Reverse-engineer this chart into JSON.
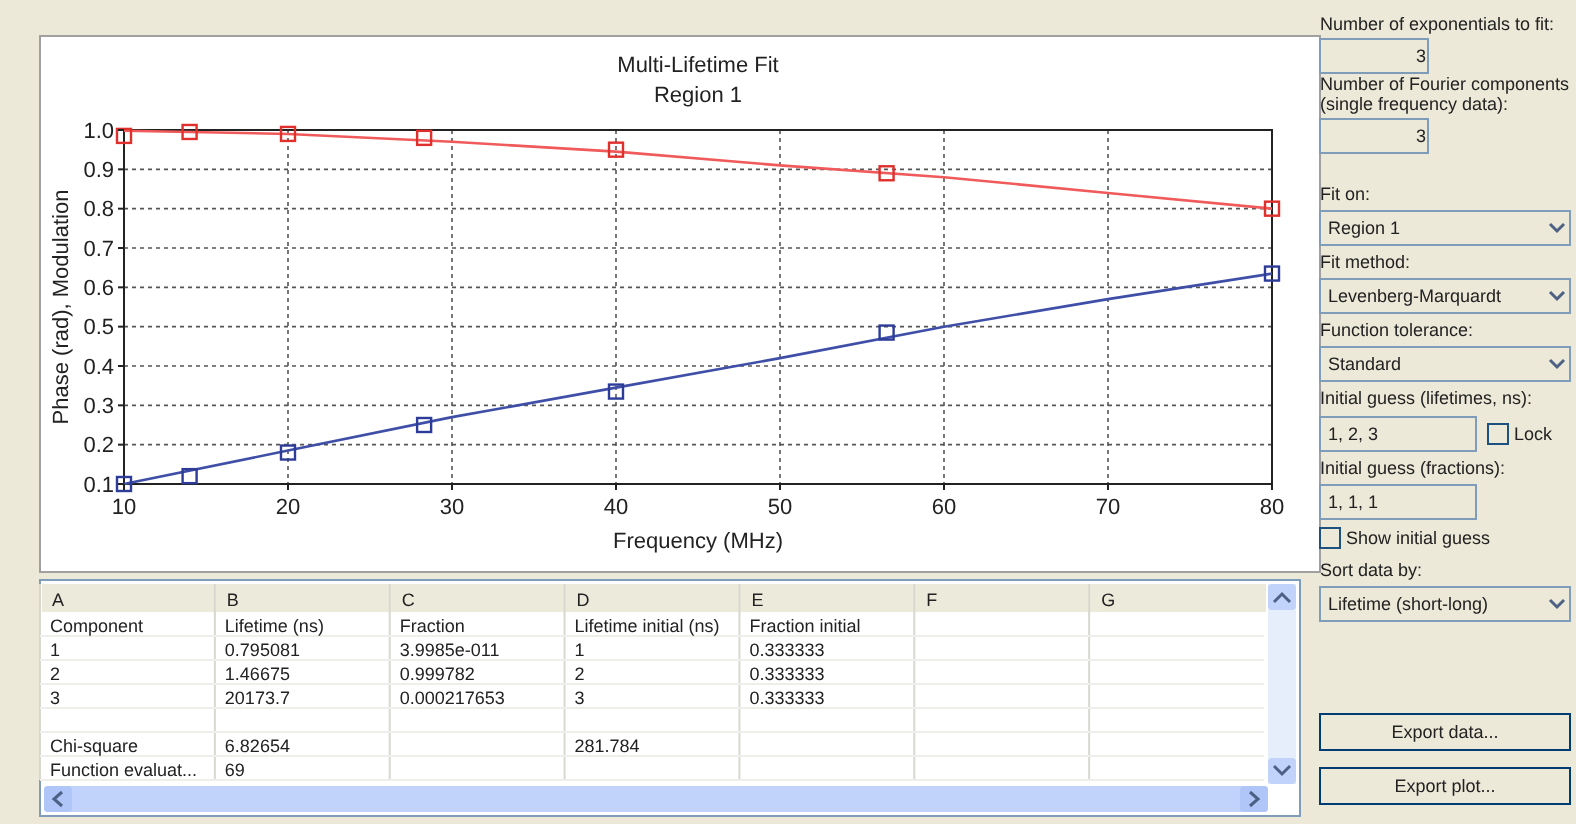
{
  "chart_data": [
    {
      "type": "line",
      "title": "Multi-Lifetime Fit",
      "subtitle": "Region 1",
      "xlabel": "Frequency (MHz)",
      "ylabel": "Phase (rad), Modulation",
      "xlim": [
        10,
        80
      ],
      "ylim": [
        0.1,
        1.0
      ],
      "xticks": [
        10,
        20,
        30,
        40,
        50,
        60,
        70,
        80
      ],
      "yticks": [
        {
          "value": 0.1,
          "label": "0.1"
        },
        {
          "value": 0.2,
          "label": "0.2"
        },
        {
          "value": 0.3,
          "label": "0.3"
        },
        {
          "value": 0.4,
          "label": "0.4"
        },
        {
          "value": 0.5,
          "label": "0.5"
        },
        {
          "value": 0.6,
          "label": "0.6"
        },
        {
          "value": 0.7,
          "label": "0.7"
        },
        {
          "value": 0.8,
          "label": "0.8"
        },
        {
          "value": 0.9,
          "label": "0.9"
        },
        {
          "value": 1.0,
          "label": "1.0"
        }
      ],
      "grid": true,
      "series": [
        {
          "type": "line",
          "marker": "none",
          "color": "#f05a5a",
          "x": [
            10,
            20,
            30,
            40,
            50,
            60,
            70,
            80
          ],
          "values": [
            0.998,
            0.99,
            0.97,
            0.945,
            0.91,
            0.88,
            0.84,
            0.8
          ]
        },
        {
          "type": "line",
          "marker": "none",
          "color": "#3f4fa8",
          "x": [
            10,
            20,
            30,
            40,
            50,
            60,
            70,
            80
          ],
          "values": [
            0.1,
            0.185,
            0.27,
            0.345,
            0.42,
            0.5,
            0.57,
            0.635
          ]
        },
        {
          "type": "scatter",
          "marker": "square",
          "color": "#e0302c",
          "x": [
            10,
            14,
            20,
            28.3,
            40,
            56.5,
            80
          ],
          "values": [
            0.985,
            0.995,
            0.99,
            0.98,
            0.95,
            0.89,
            0.8
          ]
        },
        {
          "type": "scatter",
          "marker": "square",
          "color": "#2c3c98",
          "x": [
            10,
            14,
            20,
            28.3,
            40,
            56.5,
            80
          ],
          "values": [
            0.1,
            0.12,
            0.18,
            0.25,
            0.335,
            0.485,
            0.635
          ]
        }
      ]
    },
    {
      "type": "other",
      "categories": [
        "A",
        "B",
        "C",
        "D",
        "E",
        "F",
        "G"
      ],
      "cell_labels": [
        [
          "Component",
          "Lifetime (ns)",
          "Fraction",
          "Lifetime initial (ns)",
          "Fraction initial",
          null,
          null
        ],
        [
          "1",
          "0.795081",
          "3.9985e-011",
          "1",
          "0.333333",
          null,
          null
        ],
        [
          "2",
          "1.46675",
          "0.999782",
          "2",
          "0.333333",
          null,
          null
        ],
        [
          "3",
          "20173.7",
          "0.000217653",
          "3",
          "0.333333",
          null,
          null
        ],
        [
          null,
          null,
          null,
          null,
          null,
          null,
          null
        ],
        [
          "Chi-square",
          "6.82654",
          null,
          "281.784",
          null,
          null,
          null
        ],
        [
          "Function evaluat...",
          "69",
          null,
          null,
          null,
          null,
          null
        ]
      ]
    },
    {
      "type": "other",
      "annotations": [
        "Number of exponentials to fit:",
        "3",
        "Number of Fourier components",
        "(single frequency data):",
        "3",
        "Fit on:",
        "Region 1",
        "Fit method:",
        "Levenberg-Marquardt",
        "Function tolerance:",
        "Standard",
        "Initial guess (lifetimes, ns):",
        "1, 2, 3",
        "Lock",
        "Initial guess (fractions):",
        "1, 1, 1",
        "Show initial guess",
        "Sort data by:",
        "Lifetime (short-long)",
        "Export data...",
        "Export plot..."
      ]
    }
  ]
}
